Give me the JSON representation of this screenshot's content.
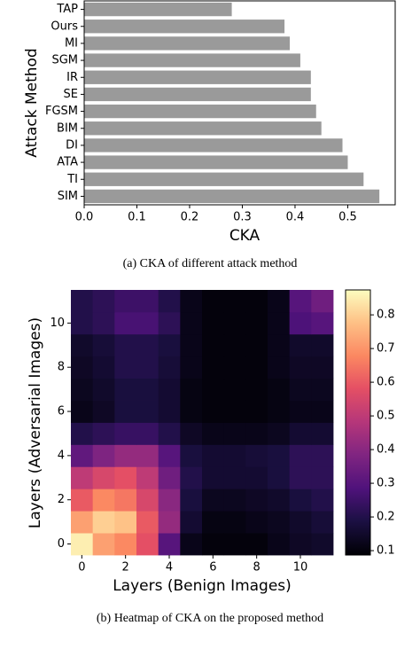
{
  "chart_data": [
    {
      "type": "bar",
      "orientation": "horizontal",
      "x_label": "CKA",
      "y_label": "Attack Method",
      "categories": [
        "TAP",
        "Ours",
        "MI",
        "SGM",
        "IR",
        "SE",
        "FGSM",
        "BIM",
        "DI",
        "ATA",
        "TI",
        "SIM"
      ],
      "values": [
        0.28,
        0.38,
        0.39,
        0.41,
        0.43,
        0.43,
        0.44,
        0.45,
        0.49,
        0.5,
        0.53,
        0.56
      ],
      "color": "#9a9a9a",
      "xlim": [
        0,
        0.59
      ],
      "xticks": [
        {
          "value": 0,
          "label": "0.0"
        },
        0.1,
        0.2,
        0.3,
        0.4,
        0.5
      ],
      "caption": "(a) CKA of different attack method"
    },
    {
      "type": "heatmap",
      "x_label": "Layers (Benign Images)",
      "y_label": "Layers (Adversarial Images)",
      "colormap": "magma",
      "values": [
        [
          0.85,
          0.72,
          0.68,
          0.58,
          0.3,
          0.12,
          0.1,
          0.1,
          0.1,
          0.12,
          0.14,
          0.15
        ],
        [
          0.72,
          0.8,
          0.78,
          0.6,
          0.42,
          0.16,
          0.11,
          0.11,
          0.12,
          0.13,
          0.15,
          0.17
        ],
        [
          0.6,
          0.68,
          0.65,
          0.55,
          0.4,
          0.18,
          0.13,
          0.13,
          0.14,
          0.15,
          0.18,
          0.2
        ],
        [
          0.5,
          0.55,
          0.58,
          0.5,
          0.35,
          0.2,
          0.16,
          0.16,
          0.16,
          0.18,
          0.22,
          0.22
        ],
        [
          0.32,
          0.38,
          0.42,
          0.42,
          0.3,
          0.18,
          0.16,
          0.16,
          0.17,
          0.18,
          0.22,
          0.22
        ],
        [
          0.2,
          0.22,
          0.24,
          0.24,
          0.2,
          0.14,
          0.12,
          0.12,
          0.12,
          0.13,
          0.16,
          0.16
        ],
        [
          0.12,
          0.14,
          0.18,
          0.18,
          0.16,
          0.11,
          0.1,
          0.1,
          0.1,
          0.11,
          0.12,
          0.12
        ],
        [
          0.13,
          0.15,
          0.18,
          0.18,
          0.16,
          0.11,
          0.1,
          0.1,
          0.1,
          0.11,
          0.13,
          0.13
        ],
        [
          0.14,
          0.16,
          0.2,
          0.2,
          0.17,
          0.12,
          0.1,
          0.1,
          0.1,
          0.12,
          0.14,
          0.14
        ],
        [
          0.15,
          0.17,
          0.2,
          0.2,
          0.18,
          0.12,
          0.1,
          0.1,
          0.1,
          0.12,
          0.15,
          0.15
        ],
        [
          0.2,
          0.22,
          0.27,
          0.27,
          0.22,
          0.12,
          0.1,
          0.1,
          0.1,
          0.12,
          0.28,
          0.3
        ],
        [
          0.2,
          0.22,
          0.25,
          0.25,
          0.2,
          0.12,
          0.1,
          0.1,
          0.1,
          0.12,
          0.3,
          0.35
        ]
      ],
      "xlim": [
        -0.5,
        11.5
      ],
      "ylim": [
        -0.5,
        11.5
      ],
      "xticks": [
        0,
        2,
        4,
        6,
        8,
        10
      ],
      "yticks": [
        0,
        2,
        4,
        6,
        8,
        10
      ],
      "zlim": [
        0.087,
        0.874
      ],
      "zticks": [
        0.1,
        0.2,
        0.3,
        0.4,
        0.5,
        0.6,
        0.7,
        0.8
      ],
      "caption": "(b) Heatmap of CKA on the proposed method"
    }
  ]
}
